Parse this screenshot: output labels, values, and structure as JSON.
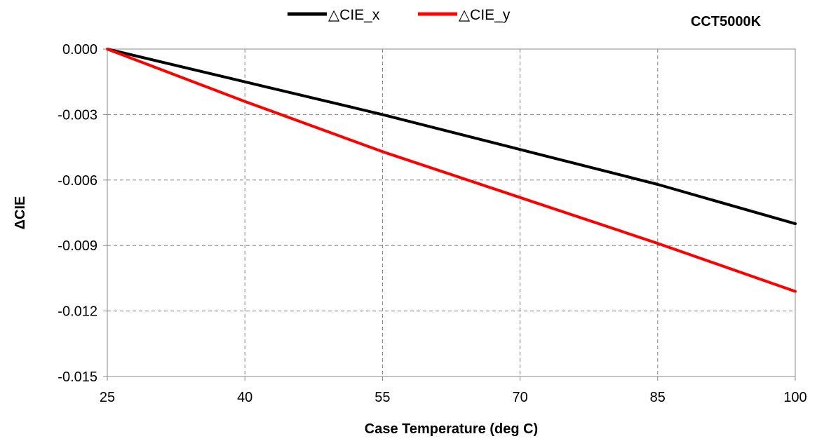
{
  "chart_data": {
    "type": "line",
    "title": "",
    "annotation": "CCT5000K",
    "xlabel": "Case Temperature (deg C)",
    "ylabel": "ΔCIE",
    "xlim": [
      25,
      100
    ],
    "ylim": [
      -0.015,
      0.0
    ],
    "xticks": [
      25,
      40,
      55,
      70,
      85,
      100
    ],
    "xtick_labels": [
      "25",
      "40",
      "55",
      "70",
      "85",
      "100"
    ],
    "yticks": [
      0.0,
      -0.003,
      -0.006,
      -0.009,
      -0.012,
      -0.015
    ],
    "ytick_labels": [
      "0.000",
      "-0.003",
      "-0.006",
      "-0.009",
      "-0.012",
      "-0.015"
    ],
    "grid": true,
    "legend_position": "top-center",
    "series": [
      {
        "name": "△CIE_x",
        "color": "#000000",
        "x": [
          25,
          40,
          55,
          70,
          85,
          100
        ],
        "y": [
          0.0,
          -0.0015,
          -0.003,
          -0.0046,
          -0.0062,
          -0.008
        ]
      },
      {
        "name": "△CIE_y",
        "color": "#ff0000",
        "x": [
          25,
          40,
          55,
          70,
          85,
          100
        ],
        "y": [
          0.0,
          -0.0024,
          -0.0047,
          -0.0068,
          -0.0089,
          -0.0111
        ]
      }
    ]
  }
}
